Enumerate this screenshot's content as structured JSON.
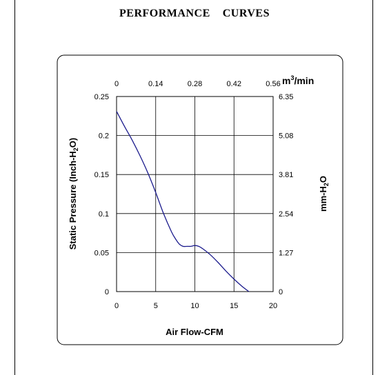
{
  "page": {
    "title": "PERFORMANCE    CURVES"
  },
  "chart_data": {
    "type": "line",
    "title": "PERFORMANCE    CURVES",
    "xlabel": "Air Flow-CFM",
    "ylabel": "Static Pressure (Inch-H2O)",
    "ylabel_right": "mm-H2O",
    "xlabel_top": "m3/min",
    "xlim": [
      0,
      20
    ],
    "ylim": [
      0,
      0.25
    ],
    "grid": true,
    "x_ticks": [
      "0",
      "5",
      "10",
      "15",
      "20"
    ],
    "y_ticks": [
      "0",
      "0.05",
      "0.1",
      "0.15",
      "0.2",
      "0.25"
    ],
    "top_ticks": [
      "0",
      "0.14",
      "0.28",
      "0.42",
      "0.56"
    ],
    "right_ticks": [
      "0",
      "1.27",
      "2.54",
      "3.81",
      "5.08",
      "6.35"
    ],
    "line_color": "#1a1a8c",
    "series": [
      {
        "x": [
          0,
          1,
          2,
          3,
          4,
          5,
          6,
          7,
          7.5,
          8,
          8.5,
          9,
          9.5,
          10,
          10.5,
          11,
          12,
          13,
          14,
          15,
          16,
          16.9
        ],
        "values": [
          0.231,
          0.212,
          0.194,
          0.174,
          0.152,
          0.127,
          0.1,
          0.077,
          0.068,
          0.061,
          0.058,
          0.058,
          0.058,
          0.059,
          0.058,
          0.055,
          0.047,
          0.037,
          0.026,
          0.016,
          0.007,
          0.0
        ]
      }
    ]
  }
}
